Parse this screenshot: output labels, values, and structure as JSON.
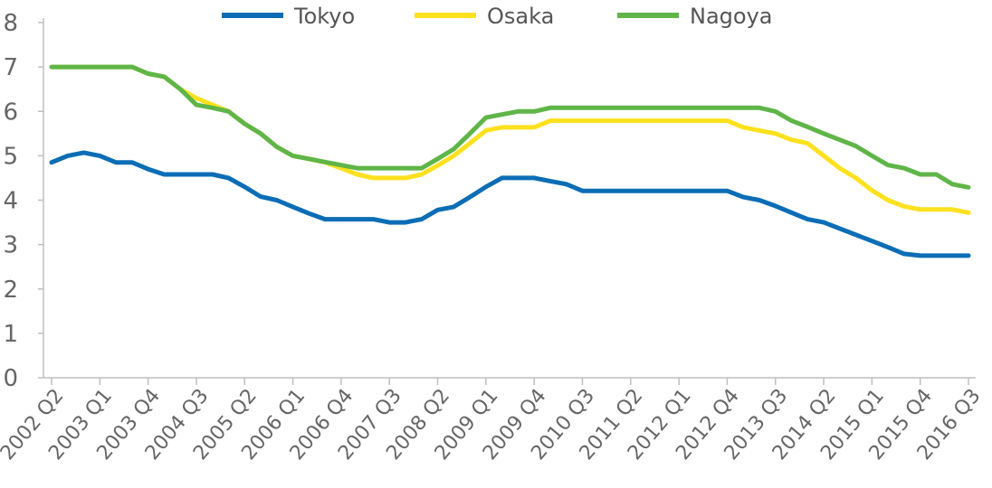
{
  "chart_data": {
    "type": "line",
    "title": "",
    "xlabel": "",
    "ylabel": "",
    "ylim": [
      0,
      8
    ],
    "yticks": [
      0,
      1,
      2,
      3,
      4,
      5,
      6,
      7,
      8
    ],
    "grid": false,
    "legend_position": "top-center",
    "x_tick_labels": [
      "2002 Q2",
      "2003 Q1",
      "2003 Q4",
      "2004 Q3",
      "2005 Q2",
      "2006 Q1",
      "2006 Q4",
      "2007 Q3",
      "2008 Q2",
      "2009 Q1",
      "2009 Q4",
      "2010 Q3",
      "2011 Q2",
      "2012 Q1",
      "2012 Q4",
      "2013 Q3",
      "2014 Q2",
      "2015 Q1",
      "2015 Q4",
      "2016 Q3"
    ],
    "categories": [
      "2002 Q2",
      "2002 Q3",
      "2002 Q4",
      "2003 Q1",
      "2003 Q2",
      "2003 Q3",
      "2003 Q4",
      "2004 Q1",
      "2004 Q2",
      "2004 Q3",
      "2004 Q4",
      "2005 Q1",
      "2005 Q2",
      "2005 Q3",
      "2005 Q4",
      "2006 Q1",
      "2006 Q2",
      "2006 Q3",
      "2006 Q4",
      "2007 Q1",
      "2007 Q2",
      "2007 Q3",
      "2007 Q4",
      "2008 Q1",
      "2008 Q2",
      "2008 Q3",
      "2008 Q4",
      "2009 Q1",
      "2009 Q2",
      "2009 Q3",
      "2009 Q4",
      "2010 Q1",
      "2010 Q2",
      "2010 Q3",
      "2010 Q4",
      "2011 Q1",
      "2011 Q2",
      "2011 Q3",
      "2011 Q4",
      "2012 Q1",
      "2012 Q2",
      "2012 Q3",
      "2012 Q4",
      "2013 Q1",
      "2013 Q2",
      "2013 Q3",
      "2013 Q4",
      "2014 Q1",
      "2014 Q2",
      "2014 Q3",
      "2014 Q4",
      "2015 Q1",
      "2015 Q2",
      "2015 Q3",
      "2015 Q4",
      "2016 Q1",
      "2016 Q2",
      "2016 Q3"
    ],
    "series": [
      {
        "name": "Tokyo",
        "color": "#0b6db5",
        "values": [
          4.85,
          5.0,
          5.07,
          5.0,
          4.85,
          4.85,
          4.7,
          4.58,
          4.58,
          4.58,
          4.58,
          4.5,
          4.3,
          4.08,
          4.0,
          3.85,
          3.7,
          3.57,
          3.57,
          3.57,
          3.57,
          3.5,
          3.5,
          3.57,
          3.78,
          3.85,
          4.07,
          4.3,
          4.5,
          4.5,
          4.5,
          4.43,
          4.36,
          4.21,
          4.21,
          4.21,
          4.21,
          4.21,
          4.21,
          4.21,
          4.21,
          4.21,
          4.21,
          4.07,
          4.0,
          3.87,
          3.72,
          3.57,
          3.5,
          3.36,
          3.22,
          3.08,
          2.94,
          2.79,
          2.75,
          2.75,
          2.75,
          2.75
        ]
      },
      {
        "name": "Osaka",
        "color": "#fde11e",
        "values": [
          7.0,
          7.0,
          7.0,
          7.0,
          7.0,
          7.0,
          6.85,
          6.78,
          6.5,
          6.3,
          6.15,
          6.0,
          5.72,
          5.5,
          5.2,
          5.0,
          4.93,
          4.85,
          4.72,
          4.58,
          4.5,
          4.5,
          4.5,
          4.58,
          4.78,
          5.0,
          5.28,
          5.57,
          5.64,
          5.64,
          5.64,
          5.79,
          5.79,
          5.79,
          5.79,
          5.79,
          5.79,
          5.79,
          5.79,
          5.79,
          5.79,
          5.79,
          5.79,
          5.64,
          5.57,
          5.5,
          5.36,
          5.28,
          5.0,
          4.72,
          4.5,
          4.22,
          4.0,
          3.86,
          3.79,
          3.79,
          3.79,
          3.72
        ]
      },
      {
        "name": "Nagoya",
        "color": "#5fb548",
        "values": [
          7.0,
          7.0,
          7.0,
          7.0,
          7.0,
          7.0,
          6.85,
          6.78,
          6.5,
          6.15,
          6.08,
          6.0,
          5.72,
          5.5,
          5.2,
          5.0,
          4.93,
          4.86,
          4.79,
          4.72,
          4.72,
          4.72,
          4.72,
          4.72,
          4.93,
          5.15,
          5.5,
          5.86,
          5.93,
          6.0,
          6.0,
          6.08,
          6.08,
          6.08,
          6.08,
          6.08,
          6.08,
          6.08,
          6.08,
          6.08,
          6.08,
          6.08,
          6.08,
          6.08,
          6.08,
          6.0,
          5.79,
          5.65,
          5.5,
          5.36,
          5.22,
          5.0,
          4.79,
          4.72,
          4.58,
          4.58,
          4.36,
          4.29
        ]
      }
    ]
  }
}
